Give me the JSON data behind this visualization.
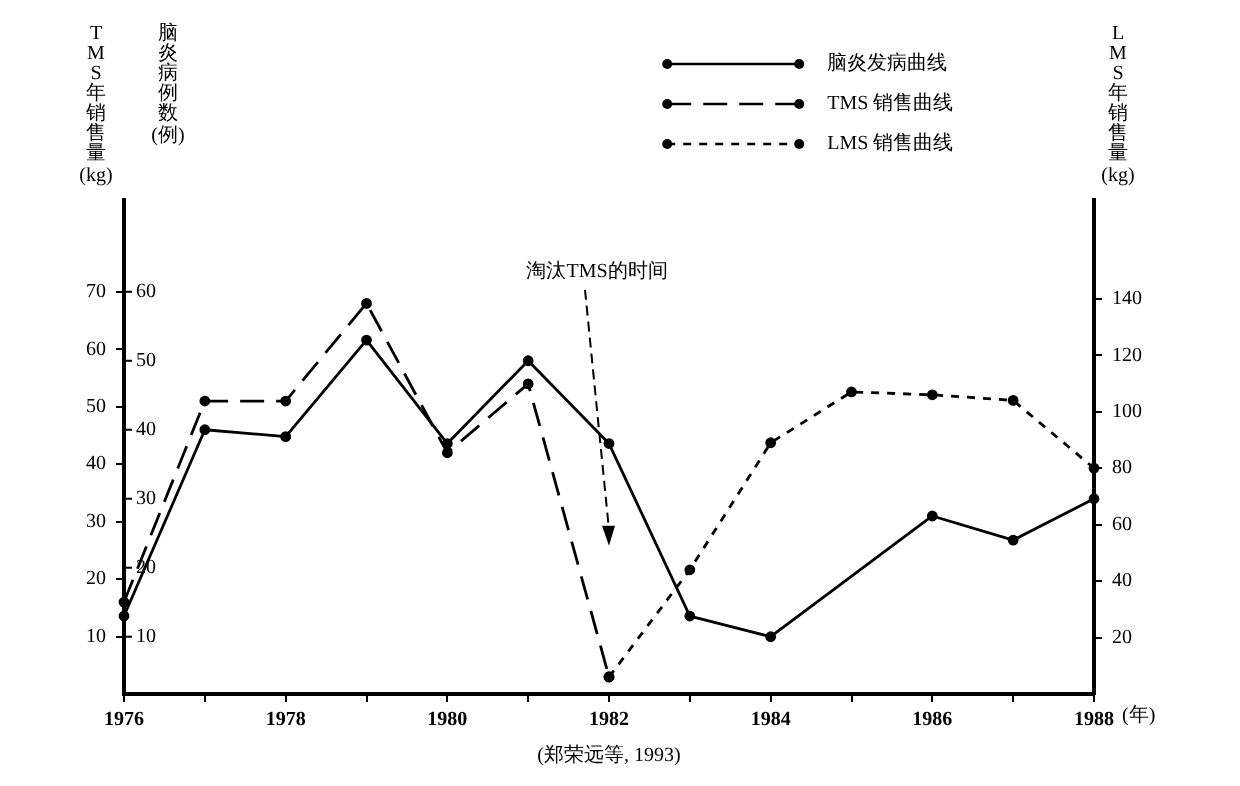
{
  "chart_data": {
    "type": "line",
    "categories": [
      "1976",
      null,
      "1978",
      null,
      "1980",
      null,
      "1982",
      null,
      "1984",
      null,
      "1986",
      null,
      "1988"
    ],
    "xlabel": "(年)",
    "ylabel": "TMS年销售量(kg)",
    "y2label": "脑炎病例数(例)",
    "y3label": "LMS年销售量(kg)",
    "series": [
      {
        "name": "脑炎发病曲线",
        "color": "#000000",
        "axis": "y2",
        "line_style": "solid",
        "values": [
          13,
          40,
          39,
          53,
          38,
          50,
          38,
          13,
          10,
          null,
          27.5,
          24,
          30
        ]
      },
      {
        "name": "TMS 销售曲线",
        "color": "#000000",
        "axis": "y",
        "line_style": "dashed",
        "values": [
          16,
          51,
          51,
          68,
          42,
          54,
          3,
          null,
          null,
          null,
          null,
          null,
          null
        ]
      },
      {
        "name": "LMS 销售曲线",
        "color": "#000000",
        "axis": "y3",
        "line_style": "dotted",
        "values": [
          null,
          null,
          null,
          null,
          null,
          null,
          6,
          44,
          89,
          107,
          106,
          104,
          80
        ]
      }
    ],
    "ylim": [
      0,
      86
    ],
    "yticks": [
      10,
      20,
      30,
      40,
      50,
      60,
      70
    ],
    "y2lim": [
      1.7,
      73.3
    ],
    "y2ticks": [
      10,
      20,
      30,
      40,
      50,
      60
    ],
    "y3lim": [
      0,
      175
    ],
    "y3ticks": [
      20,
      40,
      60,
      80,
      100,
      120,
      140
    ],
    "annotations": [
      "淘汰TMS的时间",
      "(郑荣远等, 1993)"
    ],
    "marker": "circle",
    "grid": false,
    "legend": "top right"
  }
}
